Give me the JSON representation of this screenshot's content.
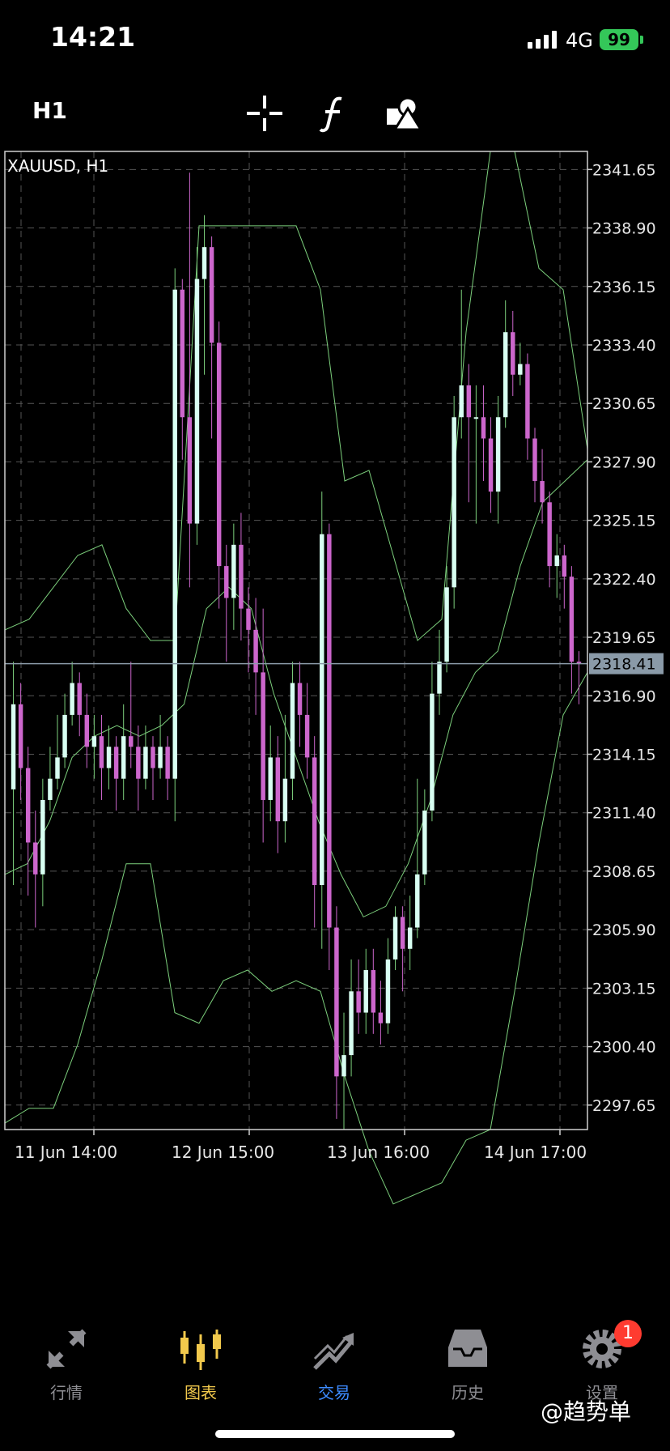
{
  "status_bar": {
    "time": "14:21",
    "network": "4G",
    "battery": "99"
  },
  "toolbar": {
    "timeframe": "H1",
    "tools": [
      {
        "icon": "crosshair-icon"
      },
      {
        "icon": "indicators-function-icon"
      },
      {
        "icon": "objects-shapes-icon"
      }
    ]
  },
  "chart": {
    "symbol_label": "XAUUSD, H1",
    "current_price": "2318.41",
    "price_ticks": [
      "2341.65",
      "2338.90",
      "2336.15",
      "2333.40",
      "2330.65",
      "2327.90",
      "2325.15",
      "2322.40",
      "2319.65",
      "2316.90",
      "2314.15",
      "2311.40",
      "2308.65",
      "2305.90",
      "2303.15",
      "2300.40",
      "2297.65"
    ],
    "time_labels": [
      "11 Jun 14:00",
      "12 Jun 15:00",
      "13 Jun 16:00",
      "14 Jun 17:00"
    ],
    "colors": {
      "bull": "#d8fff2",
      "bear": "#cc66cc",
      "grid": "#555555",
      "indicator": "#7ccf7c",
      "frame": "#cfcfcf",
      "price_tag": "#8a9aa8"
    }
  },
  "chart_data": {
    "type": "candlestick",
    "title": "XAUUSD, H1",
    "y_range": [
      2296.5,
      2342.5
    ],
    "current_price": 2318.41,
    "candles": [
      [
        2312.5,
        2316.5,
        2308.0,
        2318.5
      ],
      [
        2316.5,
        2313.5,
        2312.0,
        2317.5
      ],
      [
        2313.5,
        2310.0,
        2307.5,
        2314.5
      ],
      [
        2310.0,
        2308.5,
        2306.0,
        2311.5
      ],
      [
        2308.5,
        2312.0,
        2307.0,
        2313.0
      ],
      [
        2312.0,
        2313.0,
        2311.5,
        2314.5
      ],
      [
        2313.0,
        2314.0,
        2312.5,
        2316.0
      ],
      [
        2314.0,
        2316.0,
        2313.5,
        2317.0
      ],
      [
        2316.0,
        2317.5,
        2315.5,
        2318.5
      ],
      [
        2317.5,
        2316.0,
        2315.0,
        2318.0
      ],
      [
        2316.0,
        2314.5,
        2313.5,
        2317.0
      ],
      [
        2314.5,
        2315.0,
        2313.0,
        2316.0
      ],
      [
        2315.0,
        2313.5,
        2312.0,
        2316.0
      ],
      [
        2313.5,
        2314.5,
        2312.5,
        2315.5
      ],
      [
        2314.5,
        2313.0,
        2311.5,
        2315.0
      ],
      [
        2313.0,
        2315.0,
        2312.0,
        2316.5
      ],
      [
        2315.0,
        2314.5,
        2313.5,
        2318.5
      ],
      [
        2314.5,
        2313.0,
        2311.5,
        2315.5
      ],
      [
        2313.0,
        2314.5,
        2312.5,
        2315.5
      ],
      [
        2314.5,
        2313.5,
        2312.0,
        2315.0
      ],
      [
        2313.5,
        2314.5,
        2313.0,
        2316.0
      ],
      [
        2314.5,
        2313.0,
        2312.0,
        2315.0
      ],
      [
        2313.0,
        2336.0,
        2311.0,
        2337.0
      ],
      [
        2336.0,
        2330.0,
        2328.0,
        2336.5
      ],
      [
        2330.0,
        2325.0,
        2322.0,
        2341.5
      ],
      [
        2325.0,
        2336.5,
        2324.0,
        2338.0
      ],
      [
        2336.5,
        2338.0,
        2332.0,
        2339.5
      ],
      [
        2338.0,
        2333.5,
        2329.0,
        2338.5
      ],
      [
        2333.5,
        2323.0,
        2321.0,
        2334.5
      ],
      [
        2323.0,
        2321.5,
        2318.5,
        2324.0
      ],
      [
        2321.5,
        2324.0,
        2320.0,
        2325.0
      ],
      [
        2324.0,
        2321.0,
        2319.5,
        2325.5
      ],
      [
        2321.0,
        2320.0,
        2318.0,
        2322.0
      ],
      [
        2320.0,
        2318.0,
        2316.0,
        2321.5
      ],
      [
        2318.0,
        2312.0,
        2310.0,
        2321.0
      ],
      [
        2312.0,
        2314.0,
        2311.0,
        2315.5
      ],
      [
        2314.0,
        2311.0,
        2309.5,
        2315.0
      ],
      [
        2311.0,
        2313.0,
        2310.0,
        2316.0
      ],
      [
        2313.0,
        2317.5,
        2312.0,
        2318.5
      ],
      [
        2317.5,
        2316.0,
        2314.5,
        2318.5
      ],
      [
        2316.0,
        2314.0,
        2313.0,
        2317.5
      ],
      [
        2314.0,
        2308.0,
        2306.0,
        2315.0
      ],
      [
        2308.0,
        2324.5,
        2305.0,
        2326.5
      ],
      [
        2324.5,
        2306.0,
        2304.0,
        2325.0
      ],
      [
        2306.0,
        2299.0,
        2297.0,
        2307.0
      ],
      [
        2299.0,
        2300.0,
        2296.5,
        2302.0
      ],
      [
        2300.0,
        2303.0,
        2299.0,
        2304.5
      ],
      [
        2303.0,
        2302.0,
        2301.0,
        2304.5
      ],
      [
        2302.0,
        2304.0,
        2301.0,
        2305.0
      ],
      [
        2304.0,
        2302.0,
        2301.0,
        2305.0
      ],
      [
        2302.0,
        2301.5,
        2300.5,
        2303.5
      ],
      [
        2301.5,
        2304.5,
        2301.0,
        2305.5
      ],
      [
        2304.5,
        2306.5,
        2304.0,
        2307.0
      ],
      [
        2306.5,
        2305.0,
        2303.0,
        2307.0
      ],
      [
        2305.0,
        2306.0,
        2304.0,
        2307.5
      ],
      [
        2306.0,
        2308.5,
        2305.5,
        2313.0
      ],
      [
        2308.5,
        2311.5,
        2308.0,
        2312.5
      ],
      [
        2311.5,
        2317.0,
        2311.0,
        2318.5
      ],
      [
        2317.0,
        2318.5,
        2316.0,
        2320.0
      ],
      [
        2318.5,
        2322.0,
        2318.0,
        2323.0
      ],
      [
        2322.0,
        2330.0,
        2321.0,
        2331.0
      ],
      [
        2330.0,
        2331.5,
        2329.0,
        2336.0
      ],
      [
        2331.5,
        2330.0,
        2326.0,
        2332.5
      ],
      [
        2330.0,
        2330.0,
        2325.0,
        2331.5
      ],
      [
        2330.0,
        2329.0,
        2327.0,
        2331.5
      ],
      [
        2329.0,
        2326.5,
        2325.5,
        2330.0
      ],
      [
        2326.5,
        2330.0,
        2325.0,
        2331.0
      ],
      [
        2330.0,
        2334.0,
        2329.5,
        2335.5
      ],
      [
        2334.0,
        2332.0,
        2331.0,
        2335.0
      ],
      [
        2332.0,
        2332.5,
        2331.5,
        2333.5
      ],
      [
        2332.5,
        2329.0,
        2328.0,
        2333.0
      ],
      [
        2329.0,
        2327.0,
        2326.0,
        2329.5
      ],
      [
        2327.0,
        2326.0,
        2325.0,
        2328.5
      ],
      [
        2326.0,
        2323.0,
        2322.0,
        2326.5
      ],
      [
        2323.0,
        2323.5,
        2321.5,
        2324.5
      ],
      [
        2323.5,
        2322.5,
        2321.0,
        2324.0
      ],
      [
        2322.5,
        2318.5,
        2317.0,
        2323.0
      ],
      [
        2318.5,
        2318.4,
        2316.5,
        2319.0
      ]
    ],
    "bands": {
      "upper": [
        2320.0,
        2320.5,
        2322.0,
        2323.5,
        2324.0,
        2321.0,
        2319.5,
        2319.5,
        2339.0,
        2339.0,
        2339.0,
        2339.0,
        2339.0,
        2336.0,
        2327.0,
        2327.5,
        2323.5,
        2319.5,
        2320.5,
        2334.0,
        2342.5,
        2342.5,
        2337.0,
        2336.0,
        2328.5
      ],
      "middle": [
        2308.5,
        2309.0,
        2311.0,
        2314.0,
        2315.0,
        2315.5,
        2315.0,
        2315.5,
        2316.5,
        2321.0,
        2322.0,
        2321.0,
        2317.0,
        2314.0,
        2311.0,
        2308.5,
        2306.5,
        2307.0,
        2309.0,
        2312.0,
        2316.0,
        2318.0,
        2319.0,
        2323.0,
        2326.0,
        2327.0,
        2328.0
      ],
      "lower": [
        2296.8,
        2297.5,
        2297.5,
        2300.5,
        2304.5,
        2309.0,
        2309.0,
        2302.0,
        2301.5,
        2303.5,
        2304.0,
        2303.0,
        2303.5,
        2303.0,
        2299.0,
        2295.5,
        2293.0,
        2293.5,
        2294.0,
        2296.0,
        2296.5,
        2303.0,
        2310.0,
        2316.0,
        2318.0
      ]
    },
    "price_ticks": [
      2341.65,
      2338.9,
      2336.15,
      2333.4,
      2330.65,
      2327.9,
      2325.15,
      2322.4,
      2319.65,
      2316.9,
      2314.15,
      2311.4,
      2308.65,
      2305.9,
      2303.15,
      2300.4,
      2297.65
    ],
    "time_labels": [
      "11 Jun 14:00",
      "12 Jun 15:00",
      "13 Jun 16:00",
      "14 Jun 17:00"
    ]
  },
  "bottom_nav": [
    {
      "label": "行情",
      "icon": "quotes-arrows-icon",
      "active": false
    },
    {
      "label": "图表",
      "icon": "chart-candles-icon",
      "active": true
    },
    {
      "label": "交易",
      "icon": "trade-trend-icon",
      "active": false
    },
    {
      "label": "历史",
      "icon": "history-tray-icon",
      "active": false
    },
    {
      "label": "设置",
      "icon": "settings-gear-icon",
      "active": false,
      "badge": "1"
    }
  ],
  "watermark": "@趋势单"
}
